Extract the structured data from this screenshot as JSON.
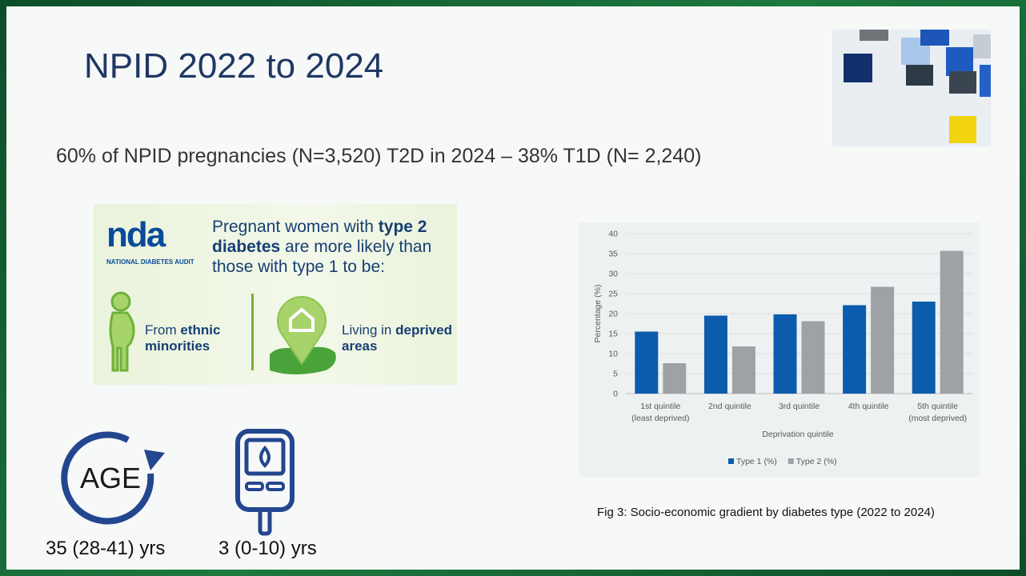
{
  "slide": {
    "title": "NPID 2022 to 2024",
    "subtitle": "60% of NPID pregnancies (N=3,520) T2D in 2024 – 38% T1D (N= 2,240)",
    "infographic": {
      "logo": "nda",
      "logo_caption": "NATIONAL DIABETES AUDIT",
      "heading_start": "Pregnant women with",
      "heading_bold": "type 2 diabetes",
      "heading_end": "are more likely than those with type 1 to be:",
      "item1_start": "From",
      "item1_bold": "ethnic minorities",
      "item2_start": "Living in",
      "item2_bold": "deprived areas"
    },
    "age_icon": "AGE",
    "age_stat": "35 (28-41) yrs",
    "duration_stat": "3 (0-10) yrs",
    "caption": "Fig 3: Socio-economic gradient by diabetes type (2022 to 2024)"
  },
  "chart_data": {
    "type": "bar",
    "categories": [
      "1st quintile\n(least deprived)",
      "2nd quintile",
      "3rd quintile",
      "4th quintile",
      "5th quintile\n(most deprived)"
    ],
    "series": [
      {
        "name": "Type 1 (%)",
        "color": "#0b5cad",
        "values": [
          15.5,
          19.5,
          19.8,
          22.1,
          23
        ]
      },
      {
        "name": "Type 2 (%)",
        "color": "#9ea2a6",
        "values": [
          7.6,
          11.8,
          18.1,
          26.7,
          35.7
        ]
      }
    ],
    "xlabel": "Deprivation quintile",
    "ylabel": "Percentage (%)",
    "ylim": [
      0,
      40
    ],
    "yticks": [
      0,
      5,
      10,
      15,
      20,
      25,
      30,
      35,
      40
    ],
    "grid": true,
    "legend": "bottom"
  }
}
